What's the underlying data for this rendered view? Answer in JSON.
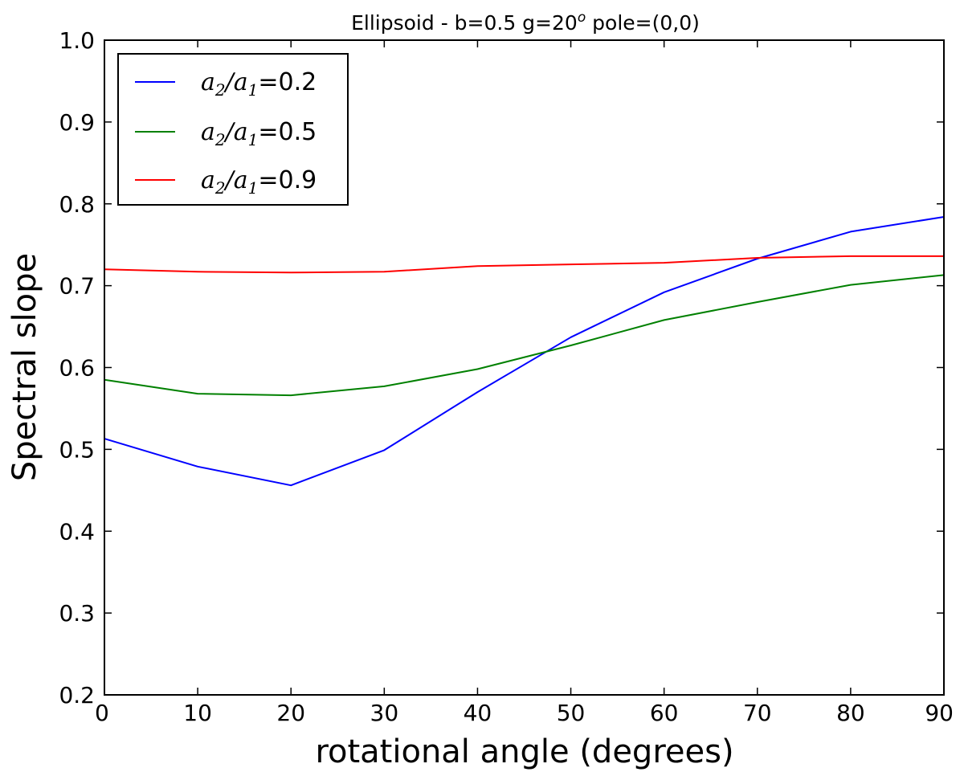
{
  "chart_data": {
    "type": "line",
    "title": "Ellipsoid -   b=0.5  g=20° pole=(0,0)",
    "title_parts": {
      "prefix": "Ellipsoid -   b=0.5  g=20",
      "superscript": "o",
      "suffix": "   pole=(0,0)"
    },
    "xlabel": "rotational angle (degrees)",
    "ylabel": "Spectral slope",
    "xlim": [
      0,
      90
    ],
    "ylim": [
      0.2,
      1.0
    ],
    "x_ticks": [
      "0",
      "10",
      "20",
      "30",
      "40",
      "50",
      "60",
      "70",
      "80",
      "90"
    ],
    "y_ticks": [
      "0.2",
      "0.3",
      "0.4",
      "0.5",
      "0.6",
      "0.7",
      "0.8",
      "0.9",
      "1.0"
    ],
    "grid": false,
    "legend_position": "top-left",
    "x": [
      0,
      10,
      20,
      30,
      40,
      50,
      60,
      70,
      80,
      90
    ],
    "series": [
      {
        "name": "a2/a1=0.2",
        "legend_sub": "2",
        "legend_den_sub": "1",
        "legend_value": "0.2",
        "color": "#0000ff",
        "values": [
          0.513,
          0.479,
          0.456,
          0.499,
          0.57,
          0.637,
          0.692,
          0.733,
          0.766,
          0.784
        ]
      },
      {
        "name": "a2/a1=0.5",
        "legend_sub": "2",
        "legend_den_sub": "1",
        "legend_value": "0.5",
        "color": "#008000",
        "values": [
          0.585,
          0.568,
          0.566,
          0.577,
          0.598,
          0.627,
          0.658,
          0.68,
          0.701,
          0.713
        ]
      },
      {
        "name": "a2/a1=0.9",
        "legend_sub": "2",
        "legend_den_sub": "1",
        "legend_value": "0.9",
        "color": "#ff0000",
        "values": [
          0.72,
          0.717,
          0.716,
          0.717,
          0.724,
          0.726,
          0.728,
          0.734,
          0.736,
          0.736
        ]
      }
    ]
  }
}
